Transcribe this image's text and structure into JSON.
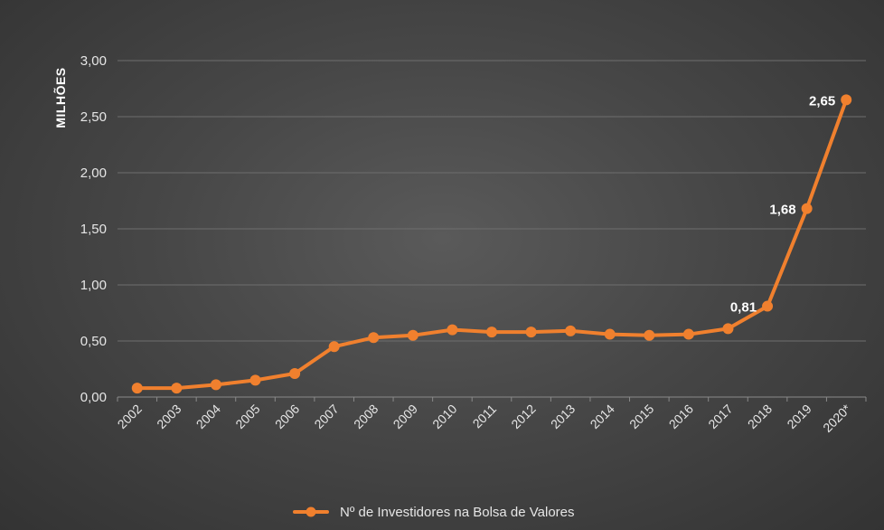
{
  "chart_data": {
    "type": "line",
    "ylabel": "MILHÕES",
    "ylim": [
      0,
      3
    ],
    "yticks": [
      "0,00",
      "0,50",
      "1,00",
      "1,50",
      "2,00",
      "2,50",
      "3,00"
    ],
    "ytick_values": [
      0,
      0.5,
      1,
      1.5,
      2,
      2.5,
      3
    ],
    "categories": [
      "2002",
      "2003",
      "2004",
      "2005",
      "2006",
      "2007",
      "2008",
      "2009",
      "2010",
      "2011",
      "2012",
      "2013",
      "2014",
      "2015",
      "2016",
      "2017",
      "2018",
      "2019",
      "2020*"
    ],
    "series": [
      {
        "name": "Nº de Investidores na Bolsa de Valores",
        "color": "#f0802e",
        "values": [
          0.08,
          0.08,
          0.11,
          0.15,
          0.21,
          0.45,
          0.53,
          0.55,
          0.6,
          0.58,
          0.58,
          0.59,
          0.56,
          0.55,
          0.56,
          0.61,
          0.81,
          1.68,
          2.65
        ]
      }
    ],
    "data_labels": [
      {
        "index": 16,
        "text": "0,81"
      },
      {
        "index": 17,
        "text": "1,68"
      },
      {
        "index": 18,
        "text": "2,65"
      }
    ],
    "grid": true,
    "legend_position": "bottom"
  }
}
